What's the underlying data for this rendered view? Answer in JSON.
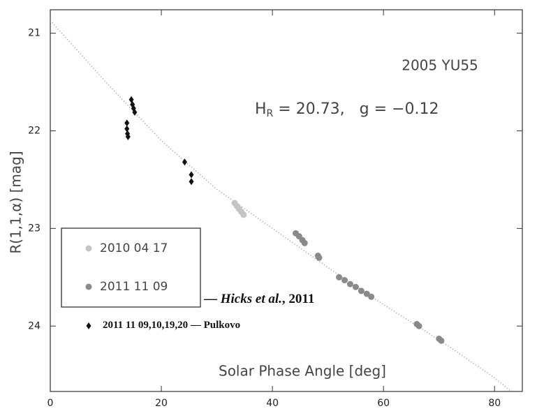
{
  "chart_data": {
    "type": "scatter",
    "x_label": "Solar Phase Angle [deg]",
    "y_label": "R(1,1,α) [mag]",
    "object": "2005 YU55",
    "params": {
      "symbol": "H",
      "subscript": "R",
      "rest": " = 20.73,   g = −0.12"
    },
    "xlim": [
      0,
      85
    ],
    "ylim": [
      20.76,
      24.67
    ],
    "y_inverted": true,
    "xticks": [
      0,
      20,
      40,
      60,
      80
    ],
    "yticks": [
      21,
      22,
      23,
      24
    ],
    "series": [
      {
        "name": "2010 04 17",
        "color": "#c4c4c4",
        "marker": "circle",
        "x": [
          33.2,
          33.6,
          34.0,
          34.4,
          34.8
        ],
        "y": [
          22.74,
          22.77,
          22.8,
          22.83,
          22.86
        ]
      },
      {
        "name": "2011 11 09",
        "color": "#8a8a8a",
        "marker": "circle",
        "x": [
          44.2,
          44.8,
          45.4,
          45.8,
          48.2,
          48.4,
          52,
          53,
          54,
          55,
          56,
          57,
          57.8,
          66,
          66.4,
          70,
          70.4
        ],
        "y": [
          23.05,
          23.08,
          23.12,
          23.15,
          23.28,
          23.3,
          23.5,
          23.53,
          23.57,
          23.6,
          23.64,
          23.67,
          23.7,
          23.98,
          24.0,
          24.13,
          24.15
        ]
      },
      {
        "name": "2011 11 09,10,19,20",
        "color": "#111111",
        "marker": "diamond",
        "x": [
          13.8,
          13.8,
          13.9,
          14.0,
          14.6,
          14.8,
          15.0,
          15.2,
          24.2,
          25.4,
          25.4
        ],
        "y": [
          21.92,
          21.98,
          22.03,
          22.06,
          21.68,
          21.73,
          21.77,
          21.81,
          22.32,
          22.45,
          22.52
        ]
      }
    ],
    "curve": {
      "color": "#999999",
      "x": [
        0,
        10,
        20,
        30,
        40,
        50,
        60,
        70,
        80,
        83
      ],
      "y": [
        20.87,
        21.5,
        22.1,
        22.6,
        23.0,
        23.4,
        23.78,
        24.14,
        24.53,
        24.67
      ]
    },
    "hicks_label": [
      "— ",
      "Hicks et al.",
      ", 2011"
    ],
    "pulkovo_label": " — Pulkovo"
  }
}
